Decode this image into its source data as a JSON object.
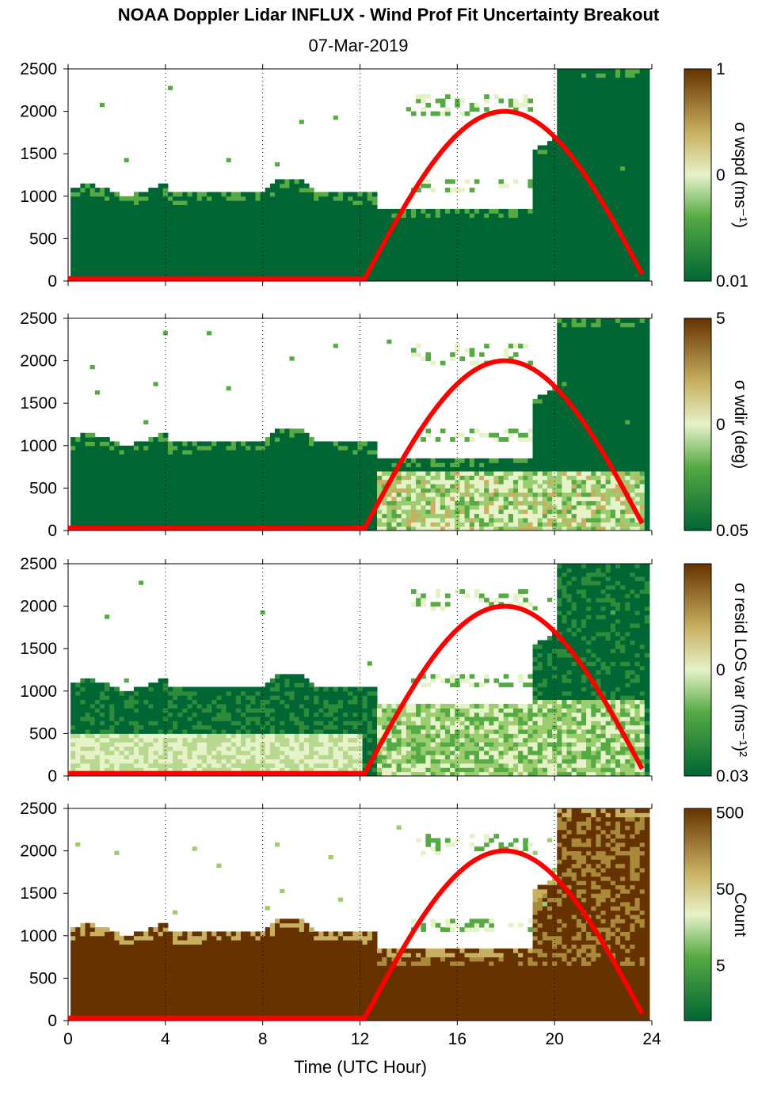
{
  "title": "NOAA Doppler Lidar INFLUX - Wind Prof Fit Uncertainty Breakout",
  "subtitle": "07-Mar-2019",
  "chart_data": {
    "type": "heatmap",
    "xlabel": "Time (UTC Hour)",
    "xlim": [
      0,
      24
    ],
    "xticks": [
      "0",
      "4",
      "8",
      "12",
      "16",
      "20",
      "24"
    ],
    "ylim": [
      0,
      2500
    ],
    "yticks": [
      "0",
      "500",
      "1000",
      "1500",
      "2000",
      "2500"
    ],
    "grid": "dotted vertical lines at 4, 8, 12, 16, 20 h",
    "overlay_curve": {
      "color": "#ff0000",
      "description_points": [
        [
          0,
          30
        ],
        [
          12.2,
          30
        ],
        [
          14,
          1000
        ],
        [
          16,
          1750
        ],
        [
          18,
          2000
        ],
        [
          20,
          1750
        ],
        [
          22,
          1000
        ],
        [
          23.7,
          30
        ]
      ]
    },
    "panels": [
      {
        "name": "wspd",
        "colorbar_label": "σ wspd (ms⁻¹)",
        "colorbar_ticks": [
          "1",
          "0",
          "0.01"
        ],
        "colormap": "green-to-brown"
      },
      {
        "name": "wdir",
        "colorbar_label": "σ wdir (deg)",
        "colorbar_ticks": [
          "5",
          "0",
          "0.05"
        ],
        "colormap": "green-to-brown"
      },
      {
        "name": "resid",
        "colorbar_label": "σ resid LOS var (ms⁻¹)²",
        "colorbar_ticks": [
          "0",
          "0.03"
        ],
        "colormap": "green-to-brown"
      },
      {
        "name": "count",
        "colorbar_label": "Count",
        "colorbar_ticks": [
          "500",
          "50",
          "5"
        ],
        "colormap": "green-to-brown"
      }
    ]
  },
  "colors": {
    "dark_green": "#006633",
    "mid_green": "#55aa44",
    "pale": "#e6f2c8",
    "tan": "#c8b060",
    "dark_brown": "#663300",
    "curve": "#ff0000"
  }
}
